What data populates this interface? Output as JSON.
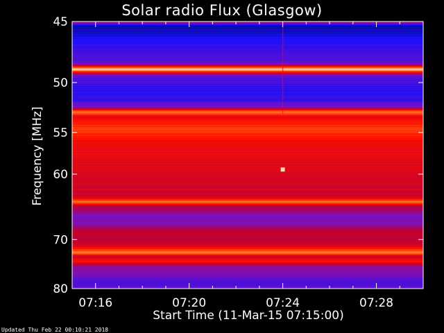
{
  "chart_data": {
    "type": "heatmap",
    "title": "Solar radio Flux (Glasgow)",
    "xlabel": "Start Time (11-Mar-15 07:15:00)",
    "ylabel": "Frequency [MHz]",
    "x_ticks": [
      "07:16",
      "07:20",
      "07:24",
      "07:28"
    ],
    "x_tick_minutes": [
      16,
      20,
      24,
      28
    ],
    "xlim_minutes": [
      15,
      30
    ],
    "y_ticks": [
      45,
      50,
      55,
      60,
      70,
      80
    ],
    "ylim": [
      45,
      80
    ],
    "y_scale": "reciprocal",
    "colormap": [
      "#000000",
      "#1010ff",
      "#7a10c0",
      "#c00030",
      "#ff1000",
      "#ff7a20",
      "#ffffff"
    ],
    "frequency_profile": [
      {
        "mhz": 45.0,
        "intensity": 0.45
      },
      {
        "mhz": 45.3,
        "intensity": 0.1
      },
      {
        "mhz": 46.5,
        "intensity": 0.2
      },
      {
        "mhz": 47.5,
        "intensity": 0.25
      },
      {
        "mhz": 48.3,
        "intensity": 0.3
      },
      {
        "mhz": 48.8,
        "intensity": 0.98
      },
      {
        "mhz": 49.3,
        "intensity": 0.3
      },
      {
        "mhz": 50.5,
        "intensity": 0.2
      },
      {
        "mhz": 51.5,
        "intensity": 0.22
      },
      {
        "mhz": 52.3,
        "intensity": 0.35
      },
      {
        "mhz": 52.8,
        "intensity": 0.85
      },
      {
        "mhz": 53.3,
        "intensity": 0.6
      },
      {
        "mhz": 54.5,
        "intensity": 0.75
      },
      {
        "mhz": 56.0,
        "intensity": 0.62
      },
      {
        "mhz": 58.0,
        "intensity": 0.6
      },
      {
        "mhz": 60.0,
        "intensity": 0.57
      },
      {
        "mhz": 62.0,
        "intensity": 0.55
      },
      {
        "mhz": 63.2,
        "intensity": 0.53
      },
      {
        "mhz": 63.8,
        "intensity": 0.85
      },
      {
        "mhz": 64.4,
        "intensity": 0.5
      },
      {
        "mhz": 66.0,
        "intensity": 0.33
      },
      {
        "mhz": 67.5,
        "intensity": 0.36
      },
      {
        "mhz": 68.5,
        "intensity": 0.52
      },
      {
        "mhz": 70.0,
        "intensity": 0.5
      },
      {
        "mhz": 71.0,
        "intensity": 0.55
      },
      {
        "mhz": 72.3,
        "intensity": 0.85
      },
      {
        "mhz": 73.2,
        "intensity": 0.5
      },
      {
        "mhz": 74.0,
        "intensity": 0.68
      },
      {
        "mhz": 75.0,
        "intensity": 0.4
      },
      {
        "mhz": 77.0,
        "intensity": 0.33
      },
      {
        "mhz": 79.0,
        "intensity": 0.25
      },
      {
        "mhz": 80.0,
        "intensity": 0.3
      }
    ],
    "features": [
      {
        "type": "burst",
        "time_minutes": 24.0,
        "mhz": 59.4,
        "intensity": 0.95
      },
      {
        "type": "vertical_line",
        "time_minutes": 24.0,
        "intensity": 0.6
      }
    ],
    "grid": false,
    "legend": "none"
  },
  "footer": "Updated Thu Feb 22 00:10:21 2018"
}
